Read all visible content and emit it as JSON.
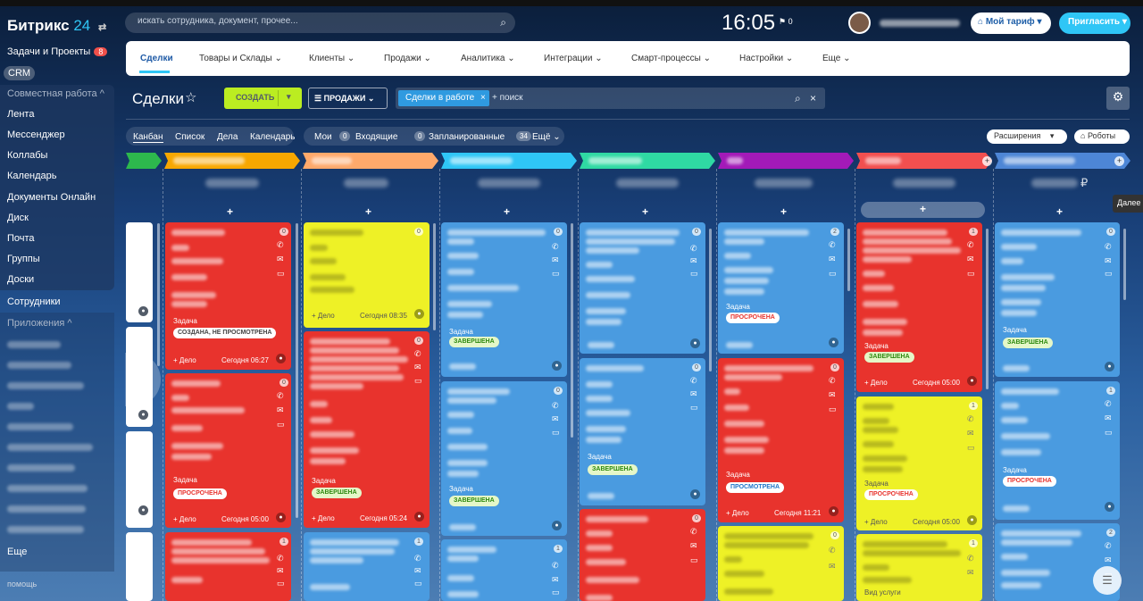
{
  "sidebar": {
    "logo_main": "Битрикс",
    "logo_num": "24",
    "logo_switch": "⇄",
    "tasks_label": "Задачи и Проекты",
    "tasks_badge": "8",
    "crm_label": "CRM",
    "group_title": "Совместная работа",
    "items": [
      "Лента",
      "Мессенджер",
      "Коллабы",
      "Календарь",
      "Документы Онлайн",
      "Диск",
      "Почта",
      "Группы",
      "Доски"
    ],
    "employees_label": "Сотрудники",
    "apps_label": "Приложения",
    "more_label": "Еще",
    "help_label": "помощь"
  },
  "header": {
    "search_placeholder": "искать сотрудника, документ, прочее...",
    "clock": "16:05",
    "flag_count": "0",
    "tariff_label": "Мой тариф",
    "invite_label": "Пригласить"
  },
  "nav": {
    "tabs": [
      "Сделки",
      "Товары и Склады",
      "Клиенты",
      "Продажи",
      "Аналитика",
      "Интеграции",
      "Смарт-процессы",
      "Настройки",
      "Еще"
    ],
    "active": "Сделки"
  },
  "toolbar": {
    "title": "Сделки",
    "create_label": "СОЗДАТЬ",
    "funnel_label": "ПРОДАЖИ",
    "filter_chip": "Сделки в работе",
    "filter_placeholder": "+ поиск"
  },
  "views": {
    "items": [
      "Канбан",
      "Список",
      "Дела",
      "Календарь"
    ],
    "active": "Канбан"
  },
  "counters": {
    "mine": "Мои",
    "incoming_count": "0",
    "incoming_label": "Входящие",
    "planned_count": "0",
    "planned_label": "Запланированные",
    "more_count": "34",
    "more_label": "Ещё"
  },
  "right_buttons": {
    "extensions": "Расширения",
    "robots": "Роботы",
    "next_tooltip": "Далее"
  },
  "kanban": {
    "add_symbol": "+",
    "last_column_sum_currency": "₽",
    "stage_colors": [
      "#2db84d",
      "#f7a700",
      "#ffa96b",
      "#2fc6f6",
      "#2fd9a3",
      "#a31ab8",
      "#f24f4f",
      "#4d86d6"
    ],
    "task_label": "Задача",
    "status_not_viewed": "СОЗДАНА, НЕ ПРОСМОТРЕНА",
    "status_overdue": "ПРОСРОЧЕНА",
    "status_done": "ЗАВЕРШЕНА",
    "status_viewed": "ПРОСМОТРЕНА",
    "deal_label": "+ Дело",
    "service_label": "Вид услуги",
    "time_0627": "Сегодня 06:27",
    "time_0835": "Сегодня 08:35",
    "time_0500": "Сегодня 05:00",
    "time_0524": "Сегодня 05:24",
    "time_1121": "Сегодня 11:21",
    "badges": [
      "0",
      "1",
      "2"
    ]
  }
}
